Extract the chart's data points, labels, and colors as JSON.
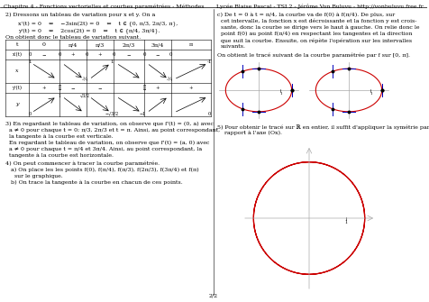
{
  "title_left": "Chapitre 4 - Fonctions vectorielles et courbes paramétrées - Méthodes",
  "title_right": "Lycée Blaise Pascal - TSI 2 - Jérôme Von Buluvu - http://vonbuluvu.free.fr",
  "page_number": "2/2",
  "background": "#ffffff",
  "curve_color": "#cc0000",
  "axis_color": "#aaaaaa",
  "tangent_color": "#0000bb",
  "text_color": "#000000"
}
